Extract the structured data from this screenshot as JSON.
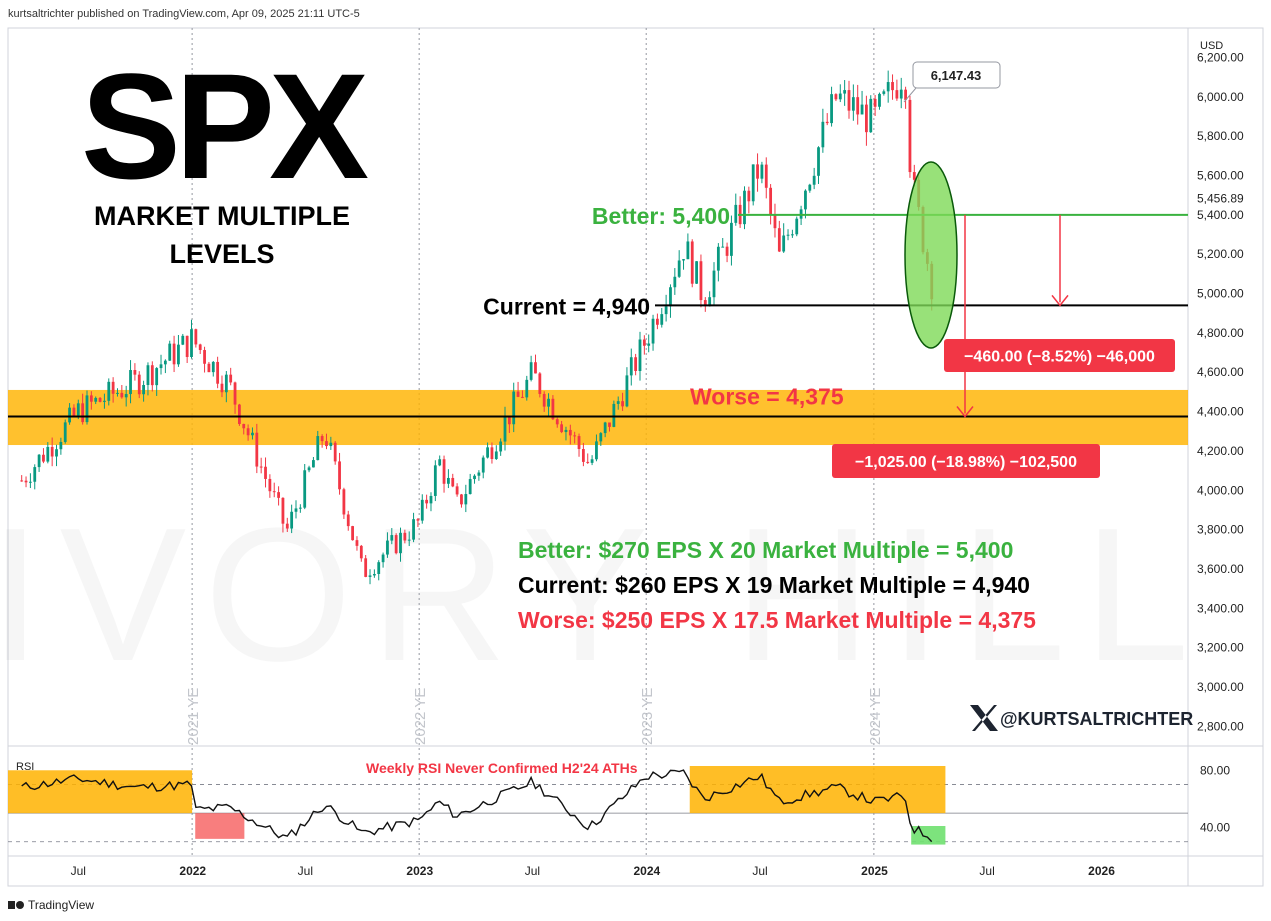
{
  "header": "kurtsaltrichter published on TradingView.com, Apr 09, 2025 21:11 UTC-5",
  "footer": "TradingView",
  "title": "SPX",
  "subtitle_lines": [
    "MARKET MULTIPLE",
    "LEVELS"
  ],
  "handle": "@KURTSALTRICHTER",
  "watermark": "IVORY HILL",
  "colors": {
    "up": "#089981",
    "down": "#f23645",
    "better": "#3ab23f",
    "worse": "#f23645",
    "band": "#ffb300",
    "ellipse": "#7ed957",
    "rsi_low": "#f77070",
    "rsi_green": "#6fe06f"
  },
  "chart_data": {
    "type": "candlestick",
    "currency": "USD",
    "y_range": [
      2700,
      6350
    ],
    "y_ticks": [
      "6,200.00",
      "6,000.00",
      "5,800.00",
      "5,600.00",
      "5,400.00",
      "5,200.00",
      "5,000.00",
      "4,800.00",
      "4,600.00",
      "4,400.00",
      "4,200.00",
      "4,000.00",
      "3,800.00",
      "3,600.00",
      "3,400.00",
      "3,200.00",
      "3,000.00",
      "2,800.00"
    ],
    "x_tick_labels": [
      "Jul",
      "2022",
      "Jul",
      "2023",
      "Jul",
      "2024",
      "Jul",
      "2025",
      "Jul",
      "2026"
    ],
    "year_end_labels": [
      "2021 YE",
      "2022 YE",
      "2023 YE",
      "2024 YE"
    ],
    "price_anchors": [
      {
        "date": "2021-04",
        "close": 4050
      },
      {
        "date": "2021-07",
        "close": 4400
      },
      {
        "date": "2021-10",
        "close": 4550
      },
      {
        "date": "2021-12-31",
        "close": 4766
      },
      {
        "date": "2022-03",
        "close": 4530
      },
      {
        "date": "2022-06",
        "close": 3790
      },
      {
        "date": "2022-08",
        "close": 4300
      },
      {
        "date": "2022-10",
        "close": 3580
      },
      {
        "date": "2022-12-31",
        "close": 3840
      },
      {
        "date": "2023-02",
        "close": 4150
      },
      {
        "date": "2023-03",
        "close": 3920
      },
      {
        "date": "2023-07",
        "close": 4590
      },
      {
        "date": "2023-10",
        "close": 4130
      },
      {
        "date": "2023-12-31",
        "close": 4770
      },
      {
        "date": "2024-03",
        "close": 5250
      },
      {
        "date": "2024-04",
        "close": 4980
      },
      {
        "date": "2024-07",
        "close": 5650
      },
      {
        "date": "2024-08",
        "close": 5180
      },
      {
        "date": "2024-11",
        "close": 6000
      },
      {
        "date": "2024-12-31",
        "close": 5880
      },
      {
        "date": "2025-02-19",
        "close": 6147
      },
      {
        "date": "2025-03",
        "close": 5580
      },
      {
        "date": "2025-04-08",
        "close": 4980
      }
    ],
    "high_label": "6,147.43",
    "last_label": "5,456.89",
    "levels": [
      {
        "name": "Better",
        "value": 5400,
        "label": "Better: 5,400"
      },
      {
        "name": "Current",
        "value": 4940,
        "label": "Current = 4,940"
      },
      {
        "name": "Worse",
        "value": 4375,
        "label": "Worse = 4,375"
      }
    ],
    "band": [
      4230,
      4510
    ],
    "measures": [
      {
        "label": "−460.00 (−8.52%) −46,000"
      },
      {
        "label": "−1,025.00 (−18.98%) −102,500"
      }
    ],
    "equations": [
      {
        "text": "Better: $270 EPS X 20 Market Multiple = 5,400"
      },
      {
        "text": "Current: $260 EPS X 19 Market Multiple = 4,940"
      },
      {
        "text": "Worse: $250 EPS X 17.5 Market Multiple = 4,375"
      }
    ],
    "rsi": {
      "label": "RSI",
      "note": "Weekly RSI Never Confirmed H2'24 ATHs",
      "y_ticks": [
        "80.00",
        "40.00"
      ],
      "guides": [
        70,
        50,
        30
      ],
      "anchors": [
        {
          "date": "2021-04",
          "v": 68
        },
        {
          "date": "2021-07",
          "v": 74
        },
        {
          "date": "2021-10",
          "v": 68
        },
        {
          "date": "2021-12-31",
          "v": 70
        },
        {
          "date": "2022-01",
          "v": 52
        },
        {
          "date": "2022-03",
          "v": 54
        },
        {
          "date": "2022-06",
          "v": 32
        },
        {
          "date": "2022-08",
          "v": 56
        },
        {
          "date": "2022-10",
          "v": 36
        },
        {
          "date": "2022-12-31",
          "v": 45
        },
        {
          "date": "2023-02",
          "v": 58
        },
        {
          "date": "2023-03",
          "v": 48
        },
        {
          "date": "2023-07",
          "v": 72
        },
        {
          "date": "2023-10",
          "v": 40
        },
        {
          "date": "2023-12-31",
          "v": 76
        },
        {
          "date": "2024-03",
          "v": 78
        },
        {
          "date": "2024-04",
          "v": 60
        },
        {
          "date": "2024-07",
          "v": 76
        },
        {
          "date": "2024-08",
          "v": 58
        },
        {
          "date": "2024-11",
          "v": 68
        },
        {
          "date": "2024-12-31",
          "v": 58
        },
        {
          "date": "2025-02-19",
          "v": 62
        },
        {
          "date": "2025-03",
          "v": 40
        },
        {
          "date": "2025-04-08",
          "v": 32
        }
      ]
    }
  }
}
